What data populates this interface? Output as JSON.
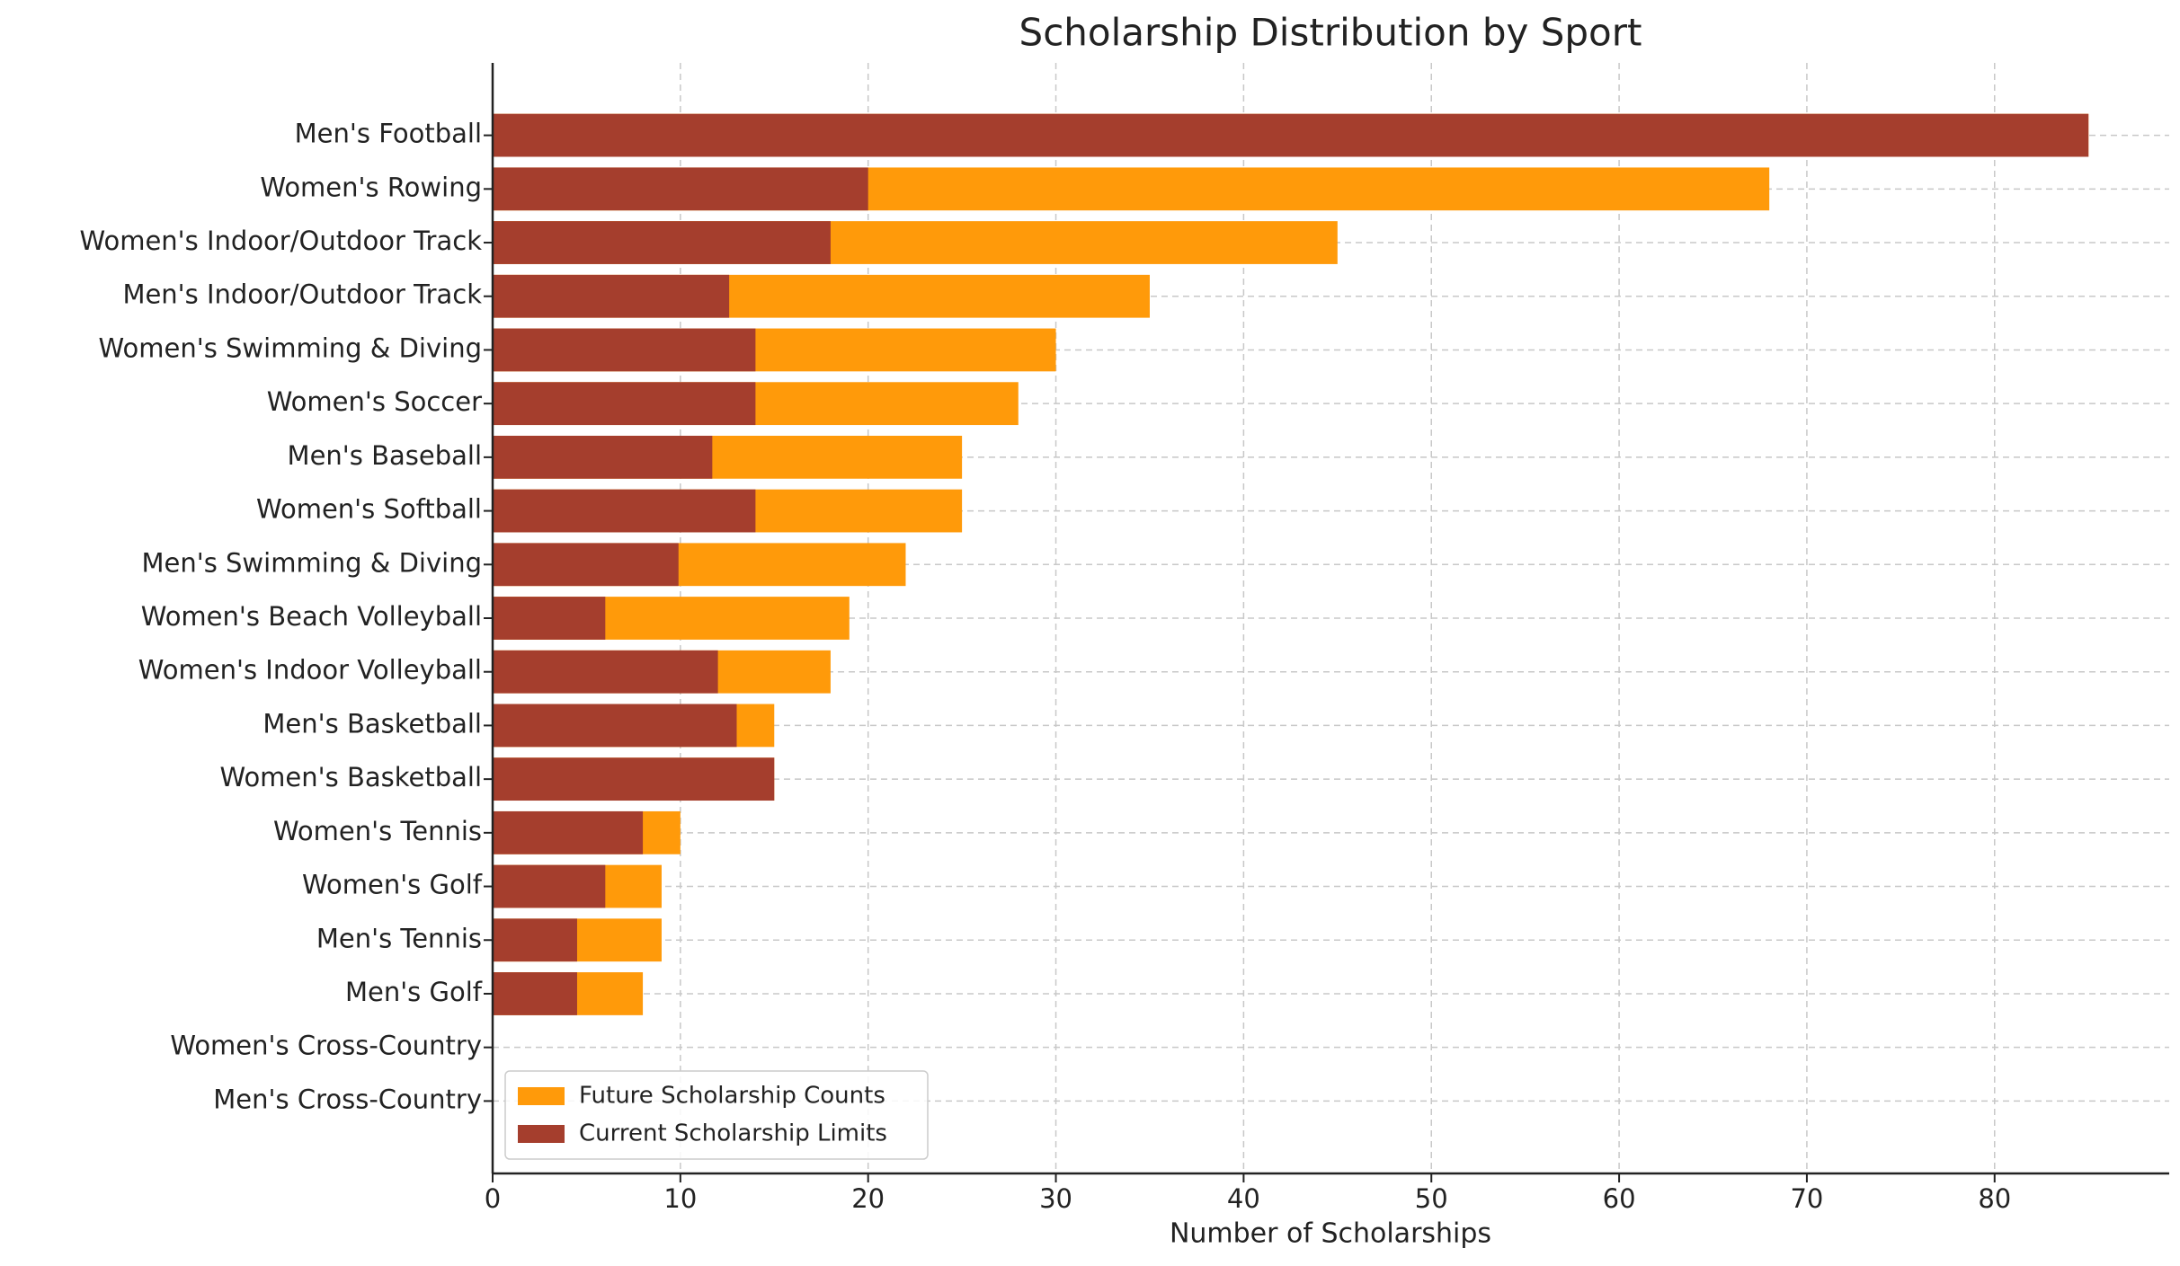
{
  "chart_data": {
    "type": "hbar_overlay",
    "title": "Scholarship Distribution by Sport",
    "xlabel": "Number of Scholarships",
    "categories": [
      "Men's Football",
      "Women's Rowing",
      "Women's Indoor/Outdoor Track",
      "Men's Indoor/Outdoor Track",
      "Women's Swimming & Diving",
      "Women's Soccer",
      "Men's Baseball",
      "Women's Softball",
      "Men's Swimming & Diving",
      "Women's Beach Volleyball",
      "Women's Indoor Volleyball",
      "Men's Basketball",
      "Women's Basketball",
      "Women's Tennis",
      "Women's Golf",
      "Men's Tennis",
      "Men's Golf",
      "Women's Cross-Country",
      "Men's Cross-Country"
    ],
    "series": [
      {
        "name": "Future Scholarship Counts",
        "color": "#ff9a0a",
        "values": [
          85,
          68,
          45,
          35,
          30,
          28,
          25,
          25,
          22,
          19,
          18,
          15,
          15,
          10,
          9,
          9,
          8,
          0,
          0
        ]
      },
      {
        "name": "Current Scholarship Limits",
        "color": "#a53e2d",
        "values": [
          85,
          20,
          18,
          12.6,
          14,
          14,
          11.7,
          14,
          9.9,
          6,
          12,
          13,
          15,
          8,
          6,
          4.5,
          4.5,
          0,
          0
        ]
      }
    ],
    "xlim": [
      0,
      89.3
    ],
    "xticks": [
      0,
      10,
      20,
      30,
      40,
      50,
      60,
      70,
      80
    ],
    "grid": true,
    "legend": "lower left"
  }
}
